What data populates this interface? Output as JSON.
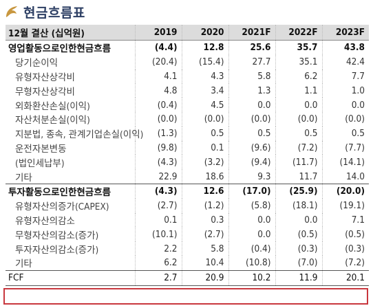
{
  "title": "현금흐름표",
  "icon": "leaf-bullet-icon",
  "accent_color": "#c8363d",
  "header": {
    "label": "12월 결산 (십억원)",
    "years": [
      "2019",
      "2020",
      "2021F",
      "2022F",
      "2023F"
    ]
  },
  "rows": [
    {
      "label": "영업활동으로인한현금흐름",
      "values": [
        "(4.4)",
        "12.8",
        "25.6",
        "35.7",
        "43.8"
      ]
    },
    {
      "label": "당기순이익",
      "values": [
        "(20.4)",
        "(15.4)",
        "27.7",
        "35.1",
        "42.4"
      ]
    },
    {
      "label": "유형자산상각비",
      "values": [
        "4.1",
        "4.3",
        "5.8",
        "6.2",
        "7.7"
      ]
    },
    {
      "label": "무형자산상각비",
      "values": [
        "4.8",
        "3.4",
        "1.3",
        "1.1",
        "1.0"
      ]
    },
    {
      "label": "외화환산손실(이익)",
      "values": [
        "(0.4)",
        "4.5",
        "0.0",
        "0.0",
        "0.0"
      ]
    },
    {
      "label": "자산처분손실(이익)",
      "values": [
        "(0.0)",
        "(0.0)",
        "(0.0)",
        "(0.0)",
        "(0.0)"
      ]
    },
    {
      "label": "지분법, 종속, 관계기업손실(이익)",
      "values": [
        "(1.3)",
        "0.5",
        "0.5",
        "0.5",
        "0.5"
      ]
    },
    {
      "label": "운전자본변동",
      "values": [
        "(9.8)",
        "0.1",
        "(9.6)",
        "(7.2)",
        "(7.7)"
      ]
    },
    {
      "label": "(법인세납부)",
      "values": [
        "(4.3)",
        "(3.2)",
        "(9.4)",
        "(11.7)",
        "(14.1)"
      ]
    },
    {
      "label": "기타",
      "values": [
        "22.9",
        "18.6",
        "9.3",
        "11.7",
        "14.0"
      ]
    },
    {
      "label": "투자활동으로인한현금흐름",
      "values": [
        "(4.3)",
        "12.6",
        "(17.0)",
        "(25.9)",
        "(20.0)"
      ]
    },
    {
      "label": "유형자산의증가(CAPEX)",
      "values": [
        "(2.7)",
        "(1.2)",
        "(5.8)",
        "(18.1)",
        "(19.1)"
      ]
    },
    {
      "label": "유형자산의감소",
      "values": [
        "0.1",
        "0.3",
        "0.0",
        "0.0",
        "7.1"
      ]
    },
    {
      "label": "무형자산의감소(증가)",
      "values": [
        "(10.1)",
        "(2.7)",
        "0.0",
        "(0.5)",
        "(0.5)"
      ]
    },
    {
      "label": "투자자산의감소(증가)",
      "values": [
        "2.2",
        "5.8",
        "(0.4)",
        "(0.3)",
        "(0.3)"
      ]
    },
    {
      "label": "기타",
      "values": [
        "6.2",
        "10.4",
        "(10.8)",
        "(7.0)",
        "(7.2)"
      ]
    },
    {
      "label": "FCF",
      "values": [
        "2.7",
        "20.9",
        "10.2",
        "11.9",
        "20.1"
      ]
    }
  ]
}
